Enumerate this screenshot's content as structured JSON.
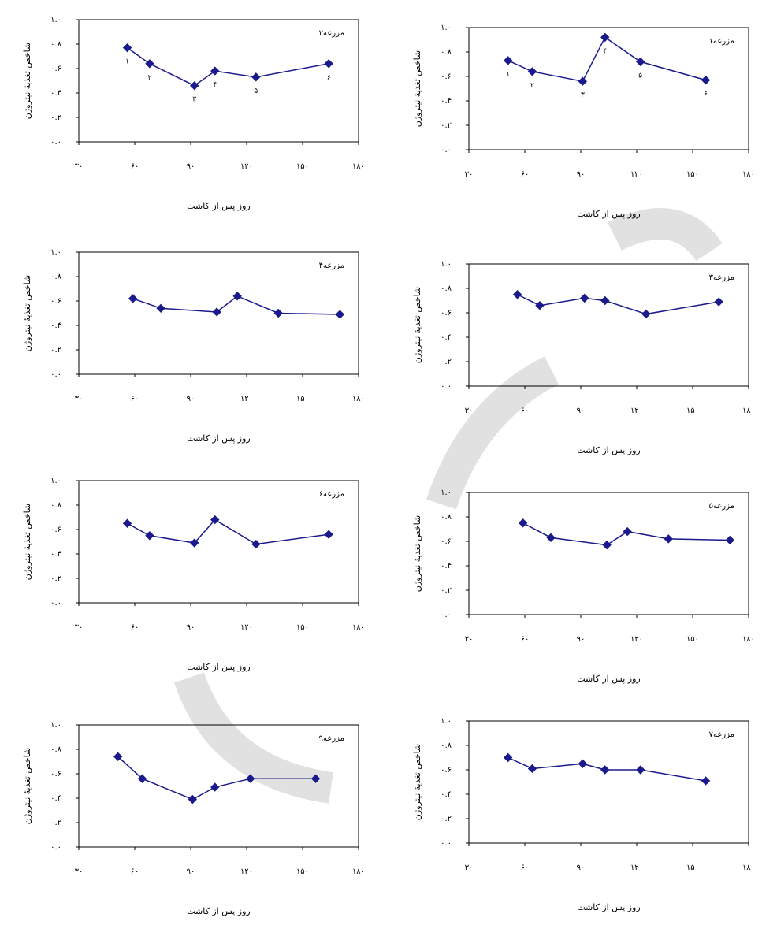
{
  "figure": {
    "xlabel": "روز پس از کاشت",
    "ylabel": "شاخص تغذیهٔ نیتروژن",
    "x_ticks": [
      "۳۰",
      "۶۰",
      "۹۰",
      "۱۲۰",
      "۱۵۰",
      "۱۸۰"
    ],
    "y_ticks": [
      "۰.۰",
      "۰.۲",
      "۰.۴",
      "۰.۶",
      "۰.۸",
      "۱.۰"
    ],
    "line_color": "#1a1a8c",
    "watermark_color": "#c8c8c8"
  },
  "chart_data": [
    {
      "type": "line",
      "title": "مزرعه۲",
      "x": [
        56,
        68,
        92,
        103,
        125,
        164
      ],
      "y": [
        0.77,
        0.64,
        0.46,
        0.58,
        0.53,
        0.64
      ],
      "point_labels": [
        "۱",
        "۲",
        "۳",
        "۴",
        "۵",
        "۶"
      ],
      "xlim": [
        30,
        180
      ],
      "ylim": [
        0,
        1
      ],
      "grid": false,
      "legend": "none"
    },
    {
      "type": "line",
      "title": "مزرعه۱",
      "x": [
        51,
        64,
        91,
        103,
        122,
        157
      ],
      "y": [
        0.73,
        0.64,
        0.56,
        0.92,
        0.72,
        0.57
      ],
      "point_labels": [
        "۱",
        "۲",
        "۳",
        "۴",
        "۵",
        "۶"
      ],
      "xlim": [
        30,
        180
      ],
      "ylim": [
        0,
        1
      ],
      "grid": false,
      "legend": "none"
    },
    {
      "type": "line",
      "title": "مزرعه۴",
      "x": [
        59,
        74,
        104,
        115,
        137,
        170
      ],
      "y": [
        0.62,
        0.54,
        0.51,
        0.64,
        0.5,
        0.49
      ],
      "xlim": [
        30,
        180
      ],
      "ylim": [
        0,
        1
      ],
      "grid": false,
      "legend": "none"
    },
    {
      "type": "line",
      "title": "مزرعه۳",
      "x": [
        56,
        68,
        92,
        103,
        125,
        164
      ],
      "y": [
        0.75,
        0.66,
        0.72,
        0.7,
        0.59,
        0.69
      ],
      "xlim": [
        30,
        180
      ],
      "ylim": [
        0,
        1
      ],
      "grid": false,
      "legend": "none"
    },
    {
      "type": "line",
      "title": "مزرعه۶",
      "x": [
        56,
        68,
        92,
        103,
        125,
        164
      ],
      "y": [
        0.65,
        0.55,
        0.49,
        0.68,
        0.48,
        0.56
      ],
      "xlim": [
        30,
        180
      ],
      "ylim": [
        0,
        1
      ],
      "grid": false,
      "legend": "none"
    },
    {
      "type": "line",
      "title": "مزرعه۵",
      "x": [
        59,
        74,
        104,
        115,
        137,
        170
      ],
      "y": [
        0.75,
        0.63,
        0.57,
        0.68,
        0.62,
        0.61
      ],
      "xlim": [
        30,
        180
      ],
      "ylim": [
        0,
        1
      ],
      "grid": false,
      "legend": "none"
    },
    {
      "type": "line",
      "title": "مزرعه۹",
      "x": [
        51,
        64,
        91,
        103,
        122,
        157
      ],
      "y": [
        0.74,
        0.56,
        0.39,
        0.49,
        0.56,
        0.56
      ],
      "xlim": [
        30,
        180
      ],
      "ylim": [
        0,
        1
      ],
      "grid": false,
      "legend": "none"
    },
    {
      "type": "line",
      "title": "مزرعه۷",
      "x": [
        51,
        64,
        91,
        103,
        122,
        157
      ],
      "y": [
        0.7,
        0.61,
        0.65,
        0.6,
        0.6,
        0.51
      ],
      "xlim": [
        30,
        180
      ],
      "ylim": [
        0,
        1
      ],
      "grid": false,
      "legend": "none"
    }
  ]
}
